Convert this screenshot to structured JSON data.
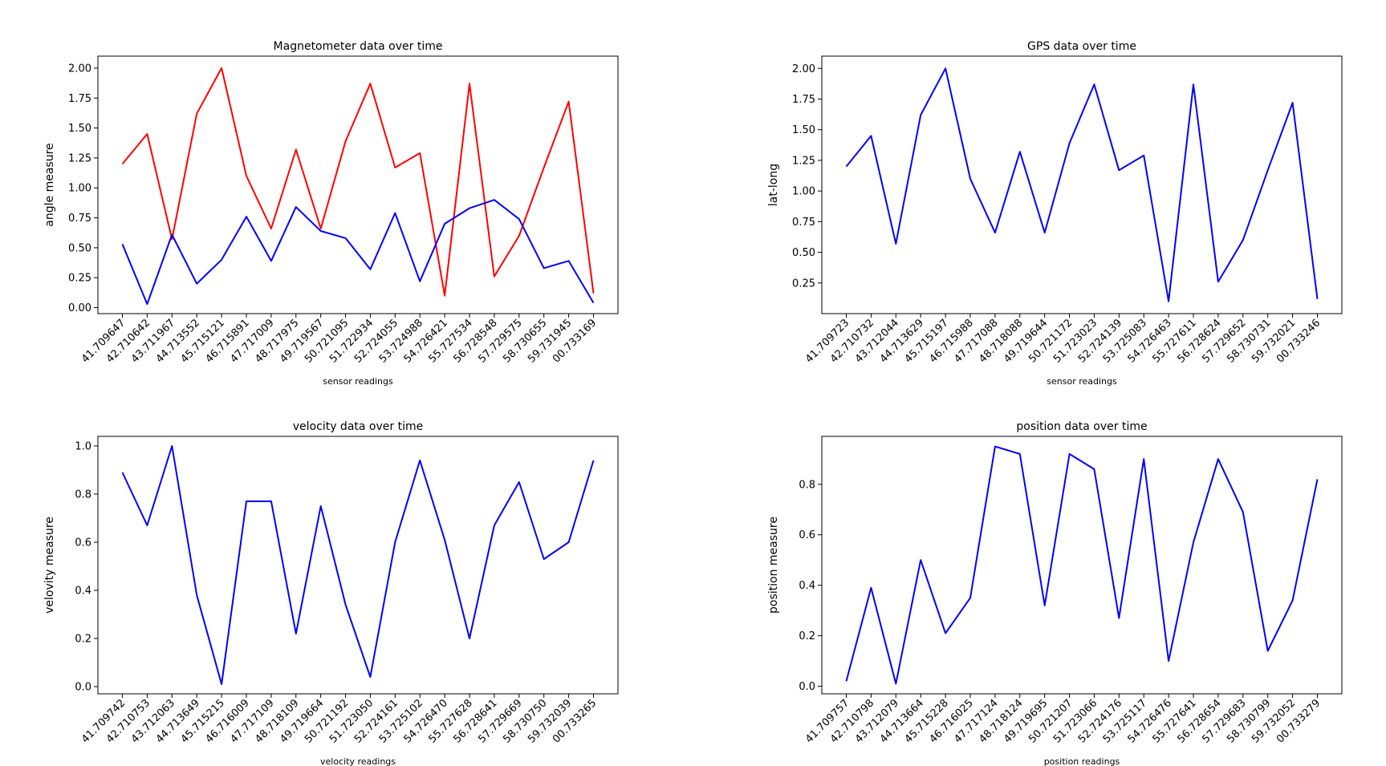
{
  "chart_data": [
    {
      "type": "line",
      "title": "Magnetometer data over time",
      "xlabel": "sensor readings",
      "ylabel": "angle measure",
      "categories": [
        "41.709647",
        "42.710642",
        "43.711967",
        "44.713552",
        "45.715121",
        "46.715891",
        "47.717009",
        "48.717975",
        "49.719567",
        "50.721095",
        "51.722934",
        "52.724055",
        "53.724988",
        "54.726421",
        "55.727534",
        "56.728548",
        "57.729575",
        "58.730655",
        "59.731945",
        "00.733169"
      ],
      "ylim": [
        -0.05,
        2.1
      ],
      "yticks": [
        "0.00",
        "0.25",
        "0.50",
        "0.75",
        "1.00",
        "1.25",
        "1.50",
        "1.75",
        "2.00"
      ],
      "grid": false,
      "series": [
        {
          "color": "#ff0000",
          "values": [
            1.2,
            1.45,
            0.57,
            1.62,
            2.0,
            1.1,
            0.66,
            1.32,
            0.66,
            1.39,
            1.87,
            1.17,
            1.29,
            0.1,
            1.87,
            0.26,
            0.6,
            1.17,
            1.72,
            0.12
          ]
        },
        {
          "color": "#0000ff",
          "values": [
            0.53,
            0.03,
            0.61,
            0.2,
            0.4,
            0.76,
            0.39,
            0.84,
            0.64,
            0.58,
            0.32,
            0.79,
            0.22,
            0.7,
            0.83,
            0.9,
            0.74,
            0.33,
            0.39,
            0.04
          ]
        }
      ]
    },
    {
      "type": "line",
      "title": "GPS data over time",
      "xlabel": "sensor readings",
      "ylabel": "lat-long",
      "categories": [
        "41.709723",
        "42.710732",
        "43.712044",
        "44.713629",
        "45.715197",
        "46.715988",
        "47.717088",
        "48.718088",
        "49.719644",
        "50.721172",
        "51.723023",
        "52.724139",
        "53.725083",
        "54.726463",
        "55.727611",
        "56.728624",
        "57.729652",
        "58.730731",
        "59.732021",
        "00.733246"
      ],
      "ylim": [
        0.0,
        2.1
      ],
      "yticks": [
        "0.25",
        "0.50",
        "0.75",
        "1.00",
        "1.25",
        "1.50",
        "1.75",
        "2.00"
      ],
      "grid": false,
      "series": [
        {
          "color": "#0000ff",
          "values": [
            1.2,
            1.45,
            0.57,
            1.62,
            2.0,
            1.1,
            0.66,
            1.32,
            0.66,
            1.39,
            1.87,
            1.17,
            1.29,
            0.1,
            1.87,
            0.26,
            0.6,
            1.17,
            1.72,
            0.12
          ]
        }
      ]
    },
    {
      "type": "line",
      "title": "velocity data over time",
      "xlabel": "velocity readings",
      "ylabel": "velovity measure",
      "categories": [
        "41.709742",
        "42.710753",
        "43.712063",
        "44.713649",
        "45.715215",
        "46.716009",
        "47.717109",
        "48.718109",
        "49.719664",
        "50.721192",
        "51.723050",
        "52.724161",
        "53.725102",
        "54.726470",
        "55.727628",
        "56.728641",
        "57.729669",
        "58.730750",
        "59.732039",
        "00.733265"
      ],
      "ylim": [
        -0.03,
        1.04
      ],
      "yticks": [
        "0.0",
        "0.2",
        "0.4",
        "0.6",
        "0.8",
        "1.0"
      ],
      "grid": false,
      "series": [
        {
          "color": "#0000ff",
          "values": [
            0.89,
            0.67,
            1.0,
            0.38,
            0.01,
            0.77,
            0.77,
            0.22,
            0.75,
            0.34,
            0.04,
            0.6,
            0.94,
            0.61,
            0.2,
            0.67,
            0.85,
            0.53,
            0.6,
            0.94
          ]
        }
      ]
    },
    {
      "type": "line",
      "title": "position data over time",
      "xlabel": "position readings",
      "ylabel": "position measure",
      "categories": [
        "41.709757",
        "42.710798",
        "43.712079",
        "44.713664",
        "45.715228",
        "46.716025",
        "47.717124",
        "48.718124",
        "49.719695",
        "50.721207",
        "51.723066",
        "52.724176",
        "53.725117",
        "54.726476",
        "55.727641",
        "56.728654",
        "57.729683",
        "58.730799",
        "59.732052",
        "00.733279"
      ],
      "ylim": [
        -0.03,
        0.99
      ],
      "yticks": [
        "0.0",
        "0.2",
        "0.4",
        "0.6",
        "0.8"
      ],
      "grid": false,
      "series": [
        {
          "color": "#0000ff",
          "values": [
            0.02,
            0.39,
            0.01,
            0.5,
            0.21,
            0.35,
            0.95,
            0.92,
            0.32,
            0.92,
            0.86,
            0.27,
            0.9,
            0.1,
            0.57,
            0.9,
            0.69,
            0.14,
            0.34,
            0.82
          ]
        }
      ]
    }
  ]
}
